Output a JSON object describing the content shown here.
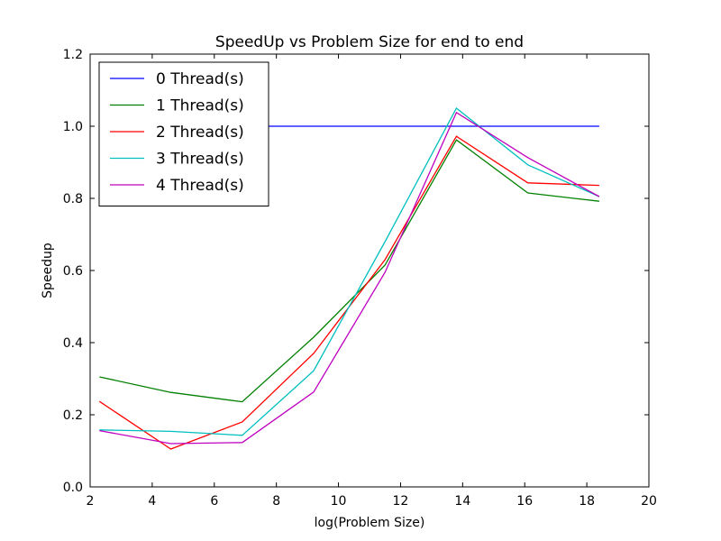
{
  "chart_data": {
    "type": "line",
    "title": "SpeedUp vs Problem Size for end to end",
    "xlabel": "log(Problem Size)",
    "ylabel": "Speedup",
    "xlim": [
      2,
      20
    ],
    "ylim": [
      0.0,
      1.2
    ],
    "xticks": [
      2,
      4,
      6,
      8,
      10,
      12,
      14,
      16,
      18,
      20
    ],
    "yticks": [
      0.0,
      0.2,
      0.4,
      0.6,
      0.8,
      1.0,
      1.2
    ],
    "xtick_labels": [
      "2",
      "4",
      "6",
      "8",
      "10",
      "12",
      "14",
      "16",
      "18",
      "20"
    ],
    "ytick_labels": [
      "0.0",
      "0.2",
      "0.4",
      "0.6",
      "0.8",
      "1.0",
      "1.2"
    ],
    "grid": false,
    "legend_position": "top-left",
    "x": [
      2.3,
      4.6,
      6.9,
      9.2,
      11.5,
      13.8,
      16.1,
      18.4
    ],
    "series": [
      {
        "name": "0 Thread(s)",
        "color": "#0000ff",
        "values": [
          1.0,
          1.0,
          1.0,
          1.0,
          1.0,
          1.0,
          1.0,
          1.0
        ]
      },
      {
        "name": "1 Thread(s)",
        "color": "#008000",
        "values": [
          0.305,
          0.262,
          0.236,
          0.415,
          0.615,
          0.962,
          0.815,
          0.792
        ]
      },
      {
        "name": "2 Thread(s)",
        "color": "#ff0000",
        "values": [
          0.237,
          0.105,
          0.18,
          0.37,
          0.63,
          0.972,
          0.843,
          0.836
        ]
      },
      {
        "name": "3 Thread(s)",
        "color": "#00bfbf",
        "values": [
          0.158,
          0.154,
          0.143,
          0.322,
          0.68,
          1.05,
          0.893,
          0.805
        ]
      },
      {
        "name": "4 Thread(s)",
        "color": "#bf00bf",
        "values": [
          0.156,
          0.12,
          0.123,
          0.263,
          0.595,
          1.038,
          0.913,
          0.805
        ]
      }
    ]
  }
}
